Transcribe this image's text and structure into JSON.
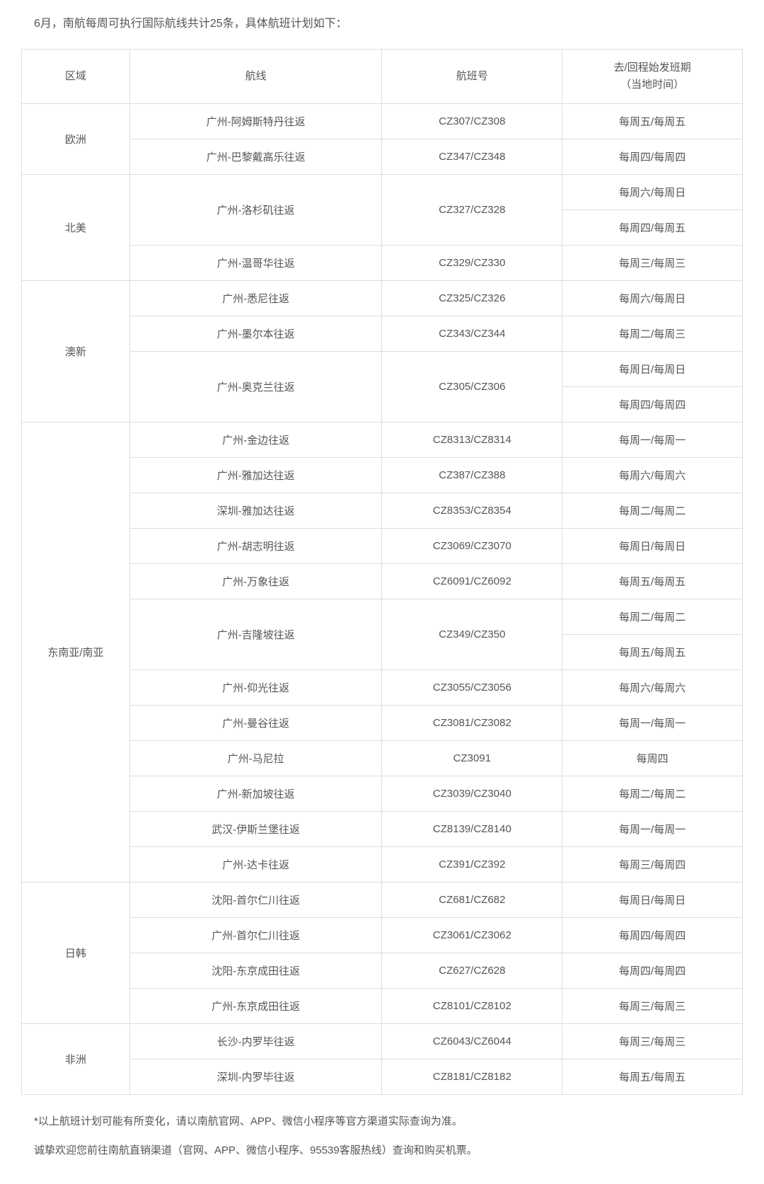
{
  "intro": "6月，南航每周可执行国际航线共计25条，具体航班计划如下：",
  "table": {
    "columns": [
      "区域",
      "航线",
      "航班号",
      "去/回程始发班期\n（当地时间）"
    ],
    "column_widths": [
      "15%",
      "35%",
      "25%",
      "25%"
    ],
    "border_color": "#dddddd",
    "text_color": "#555555",
    "background_color": "#ffffff",
    "font_size": 15,
    "cell_padding": 14,
    "regions": [
      {
        "name": "欧洲",
        "rowspan": 2,
        "rows": [
          {
            "route": "广州-阿姆斯特丹往返",
            "flight": "CZ307/CZ308",
            "schedule": "每周五/每周五"
          },
          {
            "route": "广州-巴黎戴高乐往返",
            "flight": "CZ347/CZ348",
            "schedule": "每周四/每周四"
          }
        ]
      },
      {
        "name": "北美",
        "rowspan": 3,
        "rows": [
          {
            "route": "广州-洛杉矶往返",
            "route_rowspan": 2,
            "flight": "CZ327/CZ328",
            "flight_rowspan": 2,
            "schedule": "每周六/每周日"
          },
          {
            "schedule": "每周四/每周五"
          },
          {
            "route": "广州-温哥华往返",
            "flight": "CZ329/CZ330",
            "schedule": "每周三/每周三"
          }
        ]
      },
      {
        "name": "澳新",
        "rowspan": 4,
        "rows": [
          {
            "route": "广州-悉尼往返",
            "flight": "CZ325/CZ326",
            "schedule": "每周六/每周日"
          },
          {
            "route": "广州-墨尔本往返",
            "flight": "CZ343/CZ344",
            "schedule": "每周二/每周三"
          },
          {
            "route": "广州-奥克兰往返",
            "route_rowspan": 2,
            "flight": "CZ305/CZ306",
            "flight_rowspan": 2,
            "schedule": "每周日/每周日"
          },
          {
            "schedule": "每周四/每周四"
          }
        ]
      },
      {
        "name": "东南亚/南亚",
        "rowspan": 13,
        "rows": [
          {
            "route": "广州-金边往返",
            "flight": "CZ8313/CZ8314",
            "schedule": "每周一/每周一"
          },
          {
            "route": "广州-雅加达往返",
            "flight": "CZ387/CZ388",
            "schedule": "每周六/每周六"
          },
          {
            "route": "深圳-雅加达往返",
            "flight": "CZ8353/CZ8354",
            "schedule": "每周二/每周二"
          },
          {
            "route": "广州-胡志明往返",
            "flight": "CZ3069/CZ3070",
            "schedule": "每周日/每周日"
          },
          {
            "route": "广州-万象往返",
            "flight": "CZ6091/CZ6092",
            "schedule": "每周五/每周五"
          },
          {
            "route": "广州-吉隆坡往返",
            "route_rowspan": 2,
            "flight": "CZ349/CZ350",
            "flight_rowspan": 2,
            "schedule": "每周二/每周二"
          },
          {
            "schedule": "每周五/每周五"
          },
          {
            "route": "广州-仰光往返",
            "flight": "CZ3055/CZ3056",
            "schedule": "每周六/每周六"
          },
          {
            "route": "广州-曼谷往返",
            "flight": "CZ3081/CZ3082",
            "schedule": "每周一/每周一"
          },
          {
            "route": "广州-马尼拉",
            "flight": "CZ3091",
            "schedule": "每周四"
          },
          {
            "route": "广州-新加坡往返",
            "flight": "CZ3039/CZ3040",
            "schedule": "每周二/每周二"
          },
          {
            "route": "武汉-伊斯兰堡往返",
            "flight": "CZ8139/CZ8140",
            "schedule": "每周一/每周一"
          },
          {
            "route": "广州-达卡往返",
            "flight": "CZ391/CZ392",
            "schedule": "每周三/每周四"
          }
        ]
      },
      {
        "name": "日韩",
        "rowspan": 4,
        "rows": [
          {
            "route": "沈阳-首尔仁川往返",
            "flight": "CZ681/CZ682",
            "schedule": "每周日/每周日"
          },
          {
            "route": "广州-首尔仁川往返",
            "flight": "CZ3061/CZ3062",
            "schedule": "每周四/每周四"
          },
          {
            "route": "沈阳-东京成田往返",
            "flight": "CZ627/CZ628",
            "schedule": "每周四/每周四"
          },
          {
            "route": "广州-东京成田往返",
            "flight": "CZ8101/CZ8102",
            "schedule": "每周三/每周三"
          }
        ]
      },
      {
        "name": "非洲",
        "rowspan": 2,
        "rows": [
          {
            "route": "长沙-内罗毕往返",
            "flight": "CZ6043/CZ6044",
            "schedule": "每周三/每周三"
          },
          {
            "route": "深圳-内罗毕往返",
            "flight": "CZ8181/CZ8182",
            "schedule": "每周五/每周五"
          }
        ]
      }
    ]
  },
  "footnotes": [
    "*以上航班计划可能有所变化，请以南航官网、APP、微信小程序等官方渠道实际查询为准。",
    "诚挚欢迎您前往南航直销渠道（官网、APP、微信小程序、95539客服热线）查询和购买机票。"
  ]
}
